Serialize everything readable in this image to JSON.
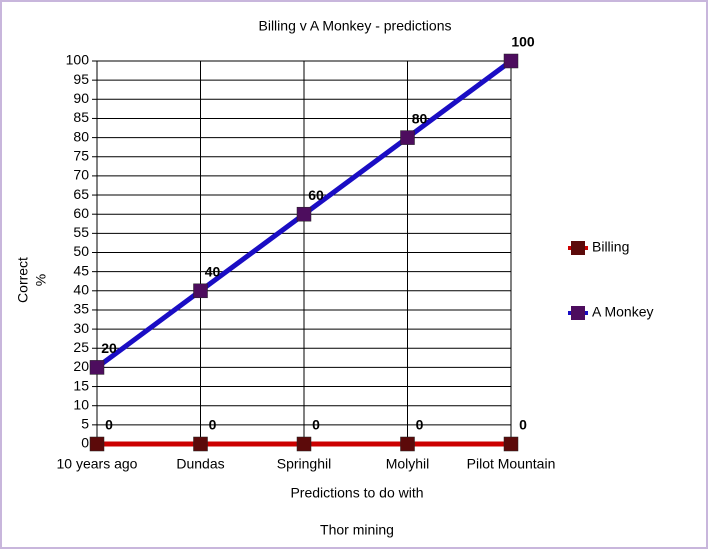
{
  "chart_data": {
    "type": "line",
    "title": "Billing v A Monkey - predictions",
    "x_label": [
      "Predictions to do with",
      "Thor mining"
    ],
    "y_label": [
      "Correct",
      "%"
    ],
    "categories": [
      "10 years ago",
      "Dundas",
      "Springhil",
      "Molyhil",
      "Pilot Mountain"
    ],
    "series": [
      {
        "name": "Billing",
        "color": "#cc0000",
        "marker_color": "#5c0a0a",
        "values": [
          0,
          0,
          0,
          0,
          0
        ]
      },
      {
        "name": "A Monkey",
        "color": "#1a0dc4",
        "marker_color": "#4d0d5e",
        "values": [
          20,
          40,
          60,
          80,
          100
        ]
      }
    ],
    "ylim": [
      0,
      100
    ],
    "yticks": [
      0,
      5,
      10,
      15,
      20,
      25,
      30,
      35,
      40,
      45,
      50,
      55,
      60,
      65,
      70,
      75,
      80,
      85,
      90,
      95,
      100
    ],
    "grid": true,
    "legend": "right"
  }
}
